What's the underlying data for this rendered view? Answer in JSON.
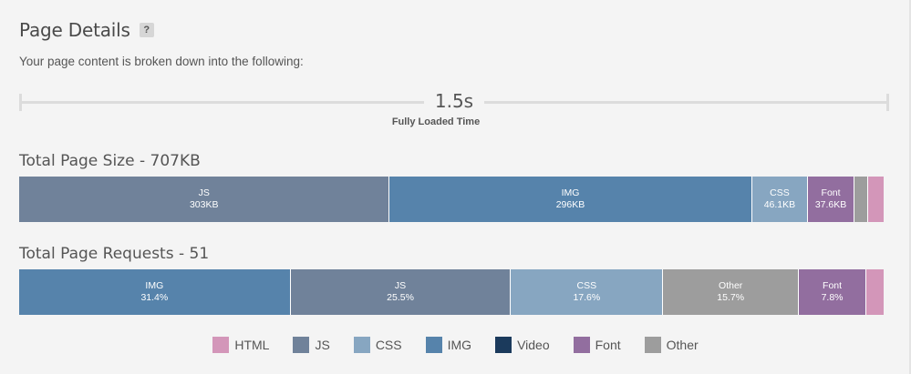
{
  "header": {
    "title": "Page Details",
    "help": "?",
    "subtitle": "Your page content is broken down into the following:"
  },
  "timeline": {
    "value": "1.5s",
    "label": "Fully Loaded Time"
  },
  "colors": {
    "HTML": "#d396b9",
    "JS": "#70829a",
    "CSS": "#87a6c1",
    "IMG": "#5683ab",
    "Video": "#1b3a5c",
    "Font": "#926e9f",
    "Other": "#9d9d9d"
  },
  "chart_data": [
    {
      "type": "bar",
      "title": "Total Page Size - 707KB",
      "segments": [
        {
          "category": "JS",
          "label": "JS",
          "value_label": "303KB",
          "value": 303
        },
        {
          "category": "IMG",
          "label": "IMG",
          "value_label": "296KB",
          "value": 296
        },
        {
          "category": "CSS",
          "label": "CSS",
          "value_label": "46.1KB",
          "value": 46.1
        },
        {
          "category": "Font",
          "label": "Font",
          "value_label": "37.6KB",
          "value": 37.6
        },
        {
          "category": "Other",
          "label": "",
          "value_label": "",
          "value": 11
        },
        {
          "category": "HTML",
          "label": "",
          "value_label": "",
          "value": 13
        }
      ]
    },
    {
      "type": "bar",
      "title": "Total Page Requests - 51",
      "segments": [
        {
          "category": "IMG",
          "label": "IMG",
          "value_label": "31.4%",
          "value": 31.4
        },
        {
          "category": "JS",
          "label": "JS",
          "value_label": "25.5%",
          "value": 25.5
        },
        {
          "category": "CSS",
          "label": "CSS",
          "value_label": "17.6%",
          "value": 17.6
        },
        {
          "category": "Other",
          "label": "Other",
          "value_label": "15.7%",
          "value": 15.7
        },
        {
          "category": "Font",
          "label": "Font",
          "value_label": "7.8%",
          "value": 7.8
        },
        {
          "category": "HTML",
          "label": "",
          "value_label": "",
          "value": 2.0
        }
      ]
    }
  ],
  "legend": [
    {
      "label": "HTML",
      "category": "HTML"
    },
    {
      "label": "JS",
      "category": "JS"
    },
    {
      "label": "CSS",
      "category": "CSS"
    },
    {
      "label": "IMG",
      "category": "IMG"
    },
    {
      "label": "Video",
      "category": "Video"
    },
    {
      "label": "Font",
      "category": "Font"
    },
    {
      "label": "Other",
      "category": "Other"
    }
  ]
}
